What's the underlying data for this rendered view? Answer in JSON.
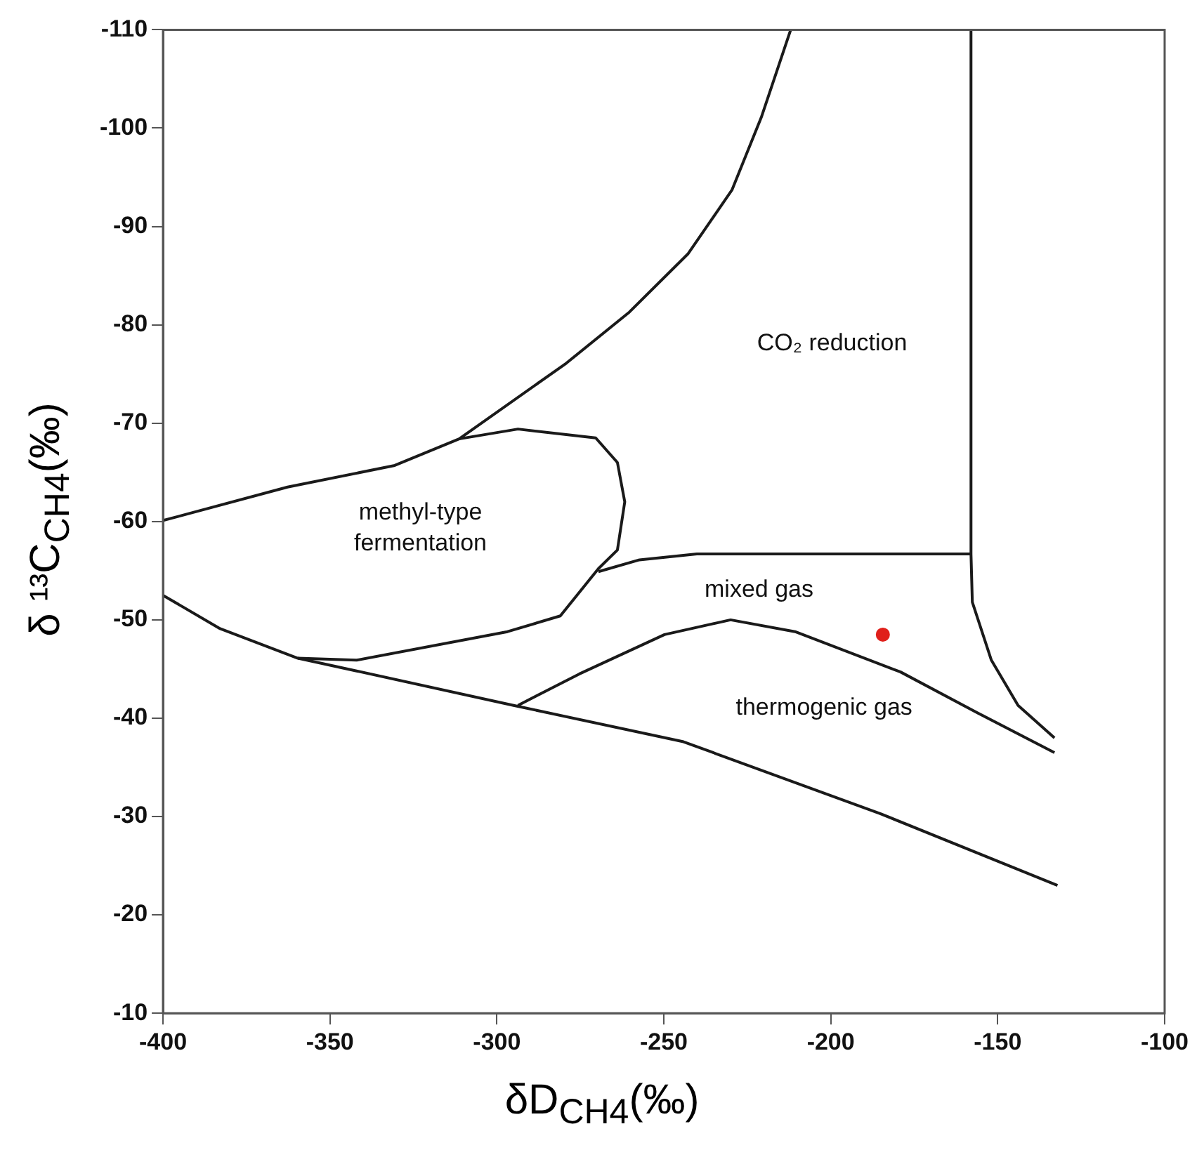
{
  "chart_data": {
    "type": "line",
    "xlabel": "δD$_{CH4}$(‰)",
    "ylabel": "δ ¹³C$_{CH4}$(‰)",
    "xlim": [
      -400,
      -100
    ],
    "xticks": [
      -400,
      -350,
      -300,
      -250,
      -200,
      -150,
      -100
    ],
    "ylim": [
      -10,
      -110
    ],
    "yticks": [
      -110,
      -100,
      -90,
      -80,
      -70,
      -60,
      -50,
      -40,
      -30,
      -20,
      -10
    ],
    "grid": false,
    "legend": false,
    "marker": "none",
    "series": [
      {
        "color": "#1a1a1a",
        "x": [
          -400,
          -362.7,
          -330.6,
          -311.3,
          -279.2,
          -260.3,
          -242.8,
          -229.6,
          -220.8,
          -212
        ],
        "values": [
          -60.1,
          -63.5,
          -65.7,
          -68.4,
          -76.1,
          -81.3,
          -87.2,
          -93.7,
          -101.1,
          -110
        ]
      },
      {
        "color": "#1a1a1a",
        "x": [
          -311.3,
          -293.7,
          -270.4,
          -263.9,
          -261.7,
          -263.9,
          -269.6,
          -281,
          -296.8,
          -342,
          -359.6
        ],
        "values": [
          -68.4,
          -69.4,
          -68.5,
          -66,
          -62,
          -57.1,
          -55.2,
          -50.4,
          -48.8,
          -45.9,
          -46.1
        ]
      },
      {
        "color": "#1a1a1a",
        "x": [
          -400,
          -382.9,
          -359.6,
          -342,
          -295,
          -244.1,
          -185.2,
          -132.1
        ],
        "values": [
          -52.5,
          -49.1,
          -46.1,
          -44.8,
          -41.3,
          -37.6,
          -30.3,
          -23
        ]
      },
      {
        "color": "#1a1a1a",
        "x": [
          -269.6,
          -257.3,
          -240.1,
          -158
        ],
        "values": [
          -54.9,
          -56.1,
          -56.7,
          -56.7
        ]
      },
      {
        "color": "#1a1a1a",
        "x": [
          -158,
          -158,
          -157.6,
          -151.9,
          -143.9,
          -133
        ],
        "values": [
          -110,
          -56.7,
          -51.8,
          -45.9,
          -41.3,
          -38
        ]
      },
      {
        "color": "#1a1a1a",
        "x": [
          -293.7,
          -275.3,
          -249.8,
          -230,
          -210.7,
          -179.1,
          -155.8,
          -133
        ],
        "values": [
          -41.3,
          -44.5,
          -48.5,
          -50,
          -48.8,
          -44.7,
          -40.5,
          -36.5
        ]
      },
      {
        "type": "scatter",
        "marker": "circle",
        "color": "#e0201b",
        "x": [
          -184.4
        ],
        "values": [
          -48.5
        ]
      }
    ],
    "annotations": [
      "methyl-type\nfermentation",
      "CO₂ reduction",
      "mixed gas",
      "thermogenic gas"
    ]
  }
}
